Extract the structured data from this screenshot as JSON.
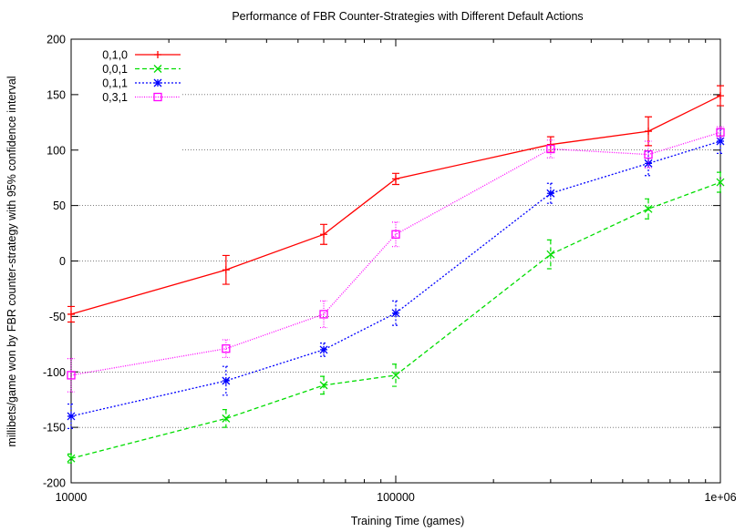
{
  "chart_data": {
    "type": "line",
    "title": "Performance of FBR Counter-Strategies with Different Default Actions",
    "xlabel": "Training Time (games)",
    "ylabel": "millibets/game won by FBR counter-strategy with 95% confidence interval",
    "x_scale": "log",
    "xlim": [
      10000,
      1000000
    ],
    "ylim": [
      -200,
      200
    ],
    "x_ticks": [
      10000,
      100000,
      1000000
    ],
    "x_tick_labels": [
      "10000",
      "100000",
      "1e+06"
    ],
    "y_ticks": [
      -200,
      -150,
      -100,
      -50,
      0,
      50,
      100,
      150,
      200
    ],
    "y_tick_labels": [
      "-200",
      "-150",
      "-100",
      "-50",
      "0",
      "50",
      "100",
      "150",
      "200"
    ],
    "grid": "horizontal",
    "legend_position": "top-left",
    "x": [
      10000,
      30000,
      60000,
      100000,
      300000,
      600000,
      1000000
    ],
    "series": [
      {
        "name": "0,1,0",
        "color": "#ff0000",
        "marker": "plus",
        "dash": "solid",
        "values": [
          -48,
          -8,
          24,
          74,
          105,
          117,
          149
        ],
        "err": [
          7,
          13,
          9,
          5,
          7,
          13,
          9
        ]
      },
      {
        "name": "0,0,1",
        "color": "#00dd00",
        "marker": "cross",
        "dash": "dashed",
        "values": [
          -178,
          -142,
          -112,
          -103,
          6,
          47,
          71
        ],
        "err": [
          4,
          8,
          8,
          10,
          13,
          9,
          9
        ]
      },
      {
        "name": "0,1,1",
        "color": "#0000ff",
        "marker": "star",
        "dash": "dotted",
        "values": [
          -140,
          -108,
          -80,
          -47,
          61,
          88,
          108
        ],
        "err": [
          11,
          13,
          6,
          11,
          9,
          11,
          11
        ]
      },
      {
        "name": "0,3,1",
        "color": "#ff00ff",
        "marker": "square",
        "dash": "dotted-fine",
        "values": [
          -103,
          -79,
          -48,
          24,
          101,
          96,
          116
        ],
        "err": [
          15,
          8,
          12,
          11,
          8,
          12,
          5
        ]
      }
    ]
  }
}
